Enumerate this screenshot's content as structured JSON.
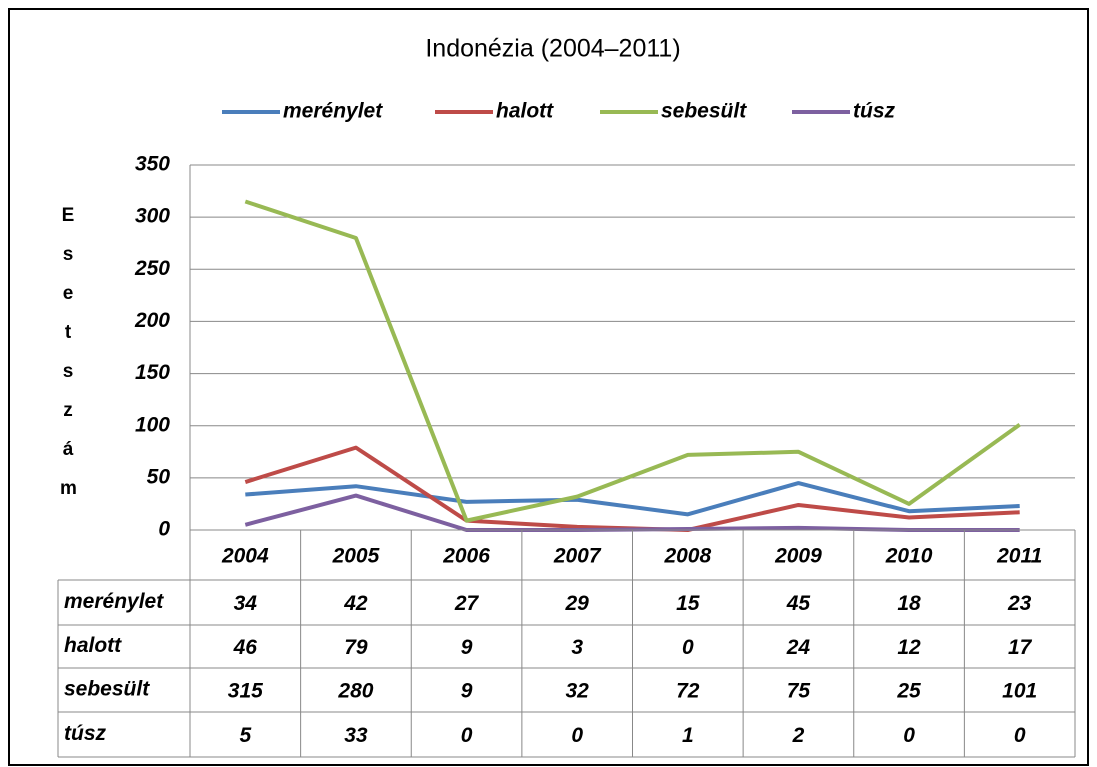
{
  "chart_data": {
    "type": "line",
    "title": "Indonézia (2004–2011)",
    "y_label": "Esetszám",
    "categories": [
      "2004",
      "2005",
      "2006",
      "2007",
      "2008",
      "2009",
      "2010",
      "2011"
    ],
    "series": [
      {
        "name": "merénylet",
        "color": "#4a7ebb",
        "values": [
          34,
          42,
          27,
          29,
          15,
          45,
          18,
          23
        ]
      },
      {
        "name": "halott",
        "color": "#be4b48",
        "values": [
          46,
          79,
          9,
          3,
          0,
          24,
          12,
          17
        ]
      },
      {
        "name": "sebesült",
        "color": "#98b954",
        "values": [
          315,
          280,
          9,
          32,
          72,
          75,
          25,
          101
        ]
      },
      {
        "name": "túsz",
        "color": "#7d60a0",
        "values": [
          5,
          33,
          0,
          0,
          1,
          2,
          0,
          0
        ]
      }
    ],
    "ylim": [
      0,
      350
    ],
    "yticks": [
      0,
      50,
      100,
      150,
      200,
      250,
      300,
      350
    ],
    "grid": true,
    "legend": "top"
  }
}
